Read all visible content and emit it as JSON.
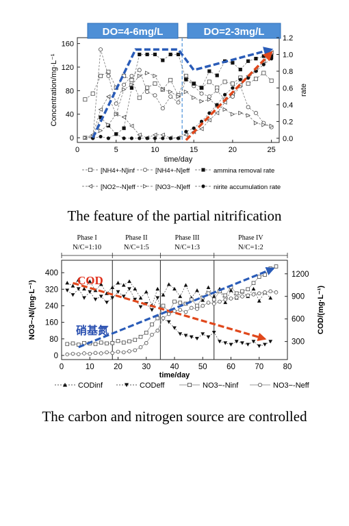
{
  "chart_data": [
    {
      "type": "line",
      "caption": "The feature of the partial nitrification",
      "phase_labels": [
        "DO=4-6mg/L",
        "DO=2-3mg/L"
      ],
      "phase_boundary_x": 13.5,
      "xlabel": "time/day",
      "ylabel": "Concentration/mg·L⁻¹",
      "ylabel_right": "rate",
      "xlim": [
        0,
        26
      ],
      "ylim": [
        -8,
        170
      ],
      "ylim_right": [
        -0.05,
        1.2
      ],
      "xticks": [
        0,
        5,
        10,
        15,
        20,
        25
      ],
      "yticks": [
        0,
        40,
        80,
        120,
        160
      ],
      "yticks_right": [
        "0.0",
        "0.2",
        "0.4",
        "0.6",
        "0.8",
        "1.0",
        "1.2"
      ],
      "yticks_right_values": [
        0,
        0.2,
        0.4,
        0.6,
        0.8,
        1.0,
        1.2
      ],
      "legend": [
        "[NH4+-N]inf",
        "[NH4+-N]eff",
        "ammina removal rate",
        "[NO2−-N]eff",
        "[NO3−-N]eff",
        "nirite accumulation rate"
      ],
      "series": [
        {
          "name": "[NH4+-N]inf",
          "axis": "left",
          "x": [
            1,
            2,
            3,
            4,
            5,
            6,
            7,
            8,
            9,
            10,
            11,
            12,
            13,
            14,
            15,
            16,
            17,
            18,
            19,
            20,
            21,
            22,
            23,
            24,
            25
          ],
          "values": [
            65,
            75,
            105,
            112,
            85,
            105,
            98,
            68,
            85,
            92,
            82,
            98,
            72,
            105,
            92,
            85,
            95,
            85,
            95,
            92,
            102,
            92,
            100,
            110,
            97
          ]
        },
        {
          "name": "[NH4+-N]eff",
          "axis": "left",
          "x": [
            1,
            2,
            3,
            4,
            5,
            6,
            7,
            8,
            9,
            10,
            11,
            12,
            13,
            14,
            15,
            16,
            17,
            18,
            19,
            20,
            21,
            22,
            23,
            24,
            25
          ],
          "values": [
            0,
            0,
            150,
            105,
            58,
            90,
            105,
            115,
            78,
            72,
            50,
            70,
            60,
            100,
            88,
            75,
            70,
            80,
            65,
            70,
            88,
            52,
            42,
            25,
            18
          ]
        },
        {
          "name": "ammina removal rate",
          "axis": "right",
          "x": [
            2,
            3,
            4,
            5,
            6,
            7,
            8,
            9,
            10,
            11,
            12,
            13,
            14,
            15,
            16,
            17,
            18,
            19,
            20,
            21,
            22,
            23,
            24,
            25
          ],
          "values": [
            0.02,
            0.25,
            0.15,
            0.05,
            0.12,
            0.6,
            1.0,
            1.0,
            1.0,
            0.93,
            1.0,
            1.0,
            0.7,
            0.65,
            0.6,
            0.8,
            0.75,
            0.92,
            0.9,
            0.82,
            0.92,
            0.95,
            0.98,
            0.98
          ]
        },
        {
          "name": "[NO2−-N]eff",
          "axis": "left",
          "x": [
            1,
            2,
            3,
            4,
            5,
            6,
            7,
            8,
            9,
            10,
            11,
            12,
            13,
            14,
            15,
            16,
            17,
            18,
            19,
            20,
            21,
            22,
            23,
            24,
            25
          ],
          "values": [
            0,
            5,
            48,
            70,
            40,
            35,
            20,
            5,
            0,
            5,
            5,
            0,
            0,
            5,
            10,
            15,
            30,
            42,
            60,
            75,
            90,
            105,
            115,
            130,
            145
          ]
        },
        {
          "name": "[NO3−-N]eff",
          "axis": "left",
          "x": [
            1,
            2,
            3,
            4,
            5,
            6,
            7,
            8,
            9,
            10,
            11,
            12,
            13,
            14,
            15,
            16,
            17,
            18,
            19,
            20,
            21,
            22,
            23,
            24,
            25
          ],
          "values": [
            0,
            2,
            12,
            22,
            40,
            82,
            90,
            105,
            110,
            105,
            82,
            78,
            70,
            78,
            68,
            62,
            65,
            55,
            48,
            40,
            42,
            38,
            25,
            22,
            20
          ]
        },
        {
          "name": "nirite accumulation rate",
          "axis": "right",
          "x": [
            2,
            3,
            4,
            5,
            6,
            7,
            8,
            9,
            10,
            11,
            12,
            13,
            14,
            15,
            16,
            17,
            18,
            19,
            20,
            21,
            22,
            23,
            24,
            25
          ],
          "values": [
            0.0,
            0.02,
            0.0,
            0.05,
            0.0,
            0.0,
            0.0,
            0.0,
            0.0,
            0.0,
            0.0,
            0.0,
            0.08,
            0.12,
            0.2,
            0.3,
            0.4,
            0.52,
            0.6,
            0.7,
            0.72,
            0.8,
            0.88,
            0.95
          ]
        }
      ],
      "trend_arrows": [
        {
          "color": "#2a5cb8",
          "points": [
            [
              2,
              0
            ],
            [
              7.5,
              150
            ],
            [
              13,
              150
            ],
            [
              15,
              115
            ],
            [
              25,
              150
            ]
          ]
        },
        {
          "color": "#e0481c",
          "points": [
            [
              14,
              -4
            ],
            [
              25,
              145
            ]
          ]
        }
      ]
    },
    {
      "type": "line",
      "caption": "The carbon and nitrogen source are controlled",
      "phases": [
        {
          "name": "Phase I",
          "ratio": "N/C=1:10"
        },
        {
          "name": "Phase II",
          "ratio": "N/C=1:5"
        },
        {
          "name": "Phase III",
          "ratio": "N/C=1:3"
        },
        {
          "name": "Phase IV",
          "ratio": "N/C=1:2"
        }
      ],
      "phase_boundaries": [
        18,
        35,
        54
      ],
      "annotations": [
        "COD",
        "硝基氮"
      ],
      "xlabel": "time/day",
      "ylabel": "NO3−-N/(mg·L⁻¹)",
      "ylabel_right": "COD/(mg·L⁻¹)",
      "xlim": [
        0,
        80
      ],
      "ylim": [
        -20,
        460
      ],
      "ylim_right": [
        60,
        1380
      ],
      "xticks": [
        0,
        10,
        20,
        30,
        40,
        50,
        60,
        70,
        80
      ],
      "yticks": [
        0,
        80,
        160,
        240,
        320,
        400
      ],
      "yticks_right": [
        300,
        600,
        900,
        1200
      ],
      "legend": [
        "CODinf",
        "CODeff",
        "NO3−-Ninf",
        "NO3−-Neff"
      ],
      "series": [
        {
          "name": "CODinf",
          "axis": "right",
          "x": [
            2,
            4,
            6,
            8,
            10,
            12,
            14,
            16,
            18,
            20,
            22,
            24,
            26,
            28,
            30,
            32,
            34,
            36,
            38,
            40,
            42,
            44,
            46,
            48,
            50,
            52,
            54,
            56,
            58,
            60,
            62,
            64,
            66,
            68,
            70,
            72,
            74
          ],
          "values": [
            1080,
            1040,
            1120,
            1000,
            1100,
            980,
            1060,
            940,
            1020,
            1080,
            1050,
            1100,
            1000,
            880,
            960,
            780,
            1000,
            920,
            1060,
            1000,
            900,
            1050,
            880,
            980,
            850,
            1020,
            900,
            1000,
            820,
            980,
            880,
            960,
            900,
            1000,
            840,
            950,
            880
          ]
        },
        {
          "name": "CODeff",
          "axis": "right",
          "x": [
            2,
            4,
            6,
            8,
            10,
            12,
            14,
            16,
            18,
            20,
            22,
            24,
            26,
            28,
            30,
            32,
            34,
            36,
            38,
            40,
            42,
            44,
            46,
            48,
            50,
            52,
            54,
            56,
            58,
            60,
            62,
            64,
            66,
            68,
            70,
            72,
            74
          ],
          "values": [
            980,
            920,
            1000,
            880,
            960,
            860,
            900,
            820,
            880,
            960,
            900,
            1000,
            860,
            760,
            800,
            720,
            880,
            600,
            560,
            480,
            400,
            380,
            360,
            340,
            400,
            360,
            420,
            300,
            280,
            260,
            300,
            280,
            260,
            300,
            240,
            260,
            300
          ]
        },
        {
          "name": "NO3−-Ninf",
          "axis": "left",
          "x": [
            2,
            4,
            6,
            8,
            10,
            12,
            14,
            16,
            18,
            20,
            22,
            24,
            26,
            28,
            30,
            32,
            34,
            36,
            38,
            40,
            42,
            44,
            46,
            48,
            50,
            52,
            54,
            56,
            58,
            60,
            62,
            64,
            66,
            68,
            70,
            72,
            74,
            76
          ],
          "values": [
            55,
            58,
            52,
            60,
            58,
            55,
            62,
            58,
            60,
            70,
            62,
            68,
            75,
            90,
            110,
            150,
            180,
            240,
            210,
            260,
            255,
            250,
            270,
            240,
            280,
            300,
            270,
            310,
            290,
            330,
            300,
            310,
            320,
            350,
            380,
            390,
            420,
            430
          ]
        },
        {
          "name": "NO3−-Neff",
          "axis": "left",
          "x": [
            2,
            4,
            6,
            8,
            10,
            12,
            14,
            16,
            18,
            20,
            22,
            24,
            26,
            28,
            30,
            32,
            34,
            36,
            38,
            40,
            42,
            44,
            46,
            48,
            50,
            52,
            54,
            56,
            58,
            60,
            62,
            64,
            66,
            68,
            70,
            72,
            74,
            76
          ],
          "values": [
            5,
            8,
            6,
            10,
            8,
            12,
            10,
            15,
            12,
            18,
            15,
            20,
            25,
            40,
            60,
            100,
            120,
            180,
            200,
            215,
            220,
            210,
            230,
            225,
            240,
            255,
            250,
            260,
            270,
            275,
            280,
            285,
            290,
            295,
            300,
            305,
            310,
            305
          ]
        }
      ],
      "trend_arrows": [
        {
          "color": "#e0481c",
          "points": [
            [
              4,
              350
            ],
            [
              72,
              80
            ]
          ]
        },
        {
          "color": "#2a5cb8",
          "points": [
            [
              6,
              40
            ],
            [
              75,
              420
            ]
          ]
        }
      ]
    }
  ]
}
